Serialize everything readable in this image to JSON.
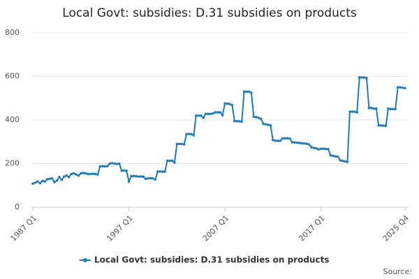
{
  "chart_data": {
    "type": "line",
    "title": "Local Govt: subsidies: D.31 subsidies on products",
    "source": "Source:",
    "categories": [
      "1987 Q1",
      null,
      null,
      null,
      null,
      null,
      null,
      null,
      null,
      null,
      null,
      null,
      null,
      null,
      null,
      null,
      null,
      null,
      null,
      null,
      null,
      null,
      null,
      null,
      null,
      null,
      null,
      null,
      null,
      null,
      null,
      null,
      null,
      null,
      null,
      null,
      null,
      null,
      null,
      null,
      "1997 Q1",
      null,
      null,
      null,
      null,
      null,
      null,
      null,
      null,
      null,
      null,
      null,
      null,
      null,
      null,
      null,
      null,
      null,
      null,
      null,
      null,
      null,
      null,
      null,
      null,
      null,
      null,
      null,
      null,
      null,
      null,
      null,
      null,
      null,
      null,
      null,
      null,
      null,
      null,
      null,
      "2007 Q1",
      null,
      null,
      null,
      null,
      null,
      null,
      null,
      null,
      null,
      null,
      null,
      null,
      null,
      null,
      null,
      null,
      null,
      null,
      null,
      null,
      null,
      null,
      null,
      null,
      null,
      null,
      null,
      null,
      null,
      null,
      null,
      null,
      null,
      null,
      null,
      null,
      null,
      null,
      null,
      "2017 Q1",
      null,
      null,
      null,
      null,
      null,
      null,
      null,
      null,
      null,
      null,
      null,
      null,
      null,
      null,
      null,
      null,
      null,
      null,
      null,
      null,
      null,
      null,
      null,
      null,
      null,
      null,
      null,
      null,
      null,
      null,
      null,
      null,
      null,
      null,
      "2025 Q4"
    ],
    "series": [
      {
        "name": "Local Govt: subsidies: D.31 subsidies on products",
        "color": "#1f7ab5",
        "values": [
          108,
          112,
          118,
          110,
          120,
          118,
          128,
          130,
          132,
          115,
          122,
          138,
          125,
          140,
          145,
          138,
          152,
          155,
          150,
          145,
          155,
          157,
          155,
          152,
          152,
          153,
          152,
          150,
          187,
          188,
          187,
          188,
          200,
          202,
          200,
          198,
          200,
          168,
          168,
          167,
          118,
          142,
          143,
          142,
          140,
          141,
          140,
          130,
          132,
          133,
          132,
          127,
          163,
          164,
          163,
          163,
          213,
          213,
          213,
          205,
          290,
          290,
          290,
          288,
          335,
          336,
          335,
          330,
          420,
          420,
          420,
          410,
          428,
          428,
          428,
          430,
          435,
          435,
          435,
          422,
          475,
          475,
          473,
          468,
          395,
          394,
          394,
          393,
          530,
          530,
          530,
          525,
          415,
          413,
          410,
          405,
          383,
          380,
          378,
          375,
          308,
          305,
          304,
          305,
          315,
          316,
          316,
          315,
          298,
          297,
          296,
          295,
          293,
          292,
          291,
          288,
          275,
          272,
          270,
          265,
          268,
          268,
          267,
          266,
          238,
          235,
          233,
          232,
          215,
          212,
          210,
          208,
          438,
          438,
          438,
          435,
          595,
          595,
          595,
          592,
          455,
          455,
          452,
          452,
          375,
          375,
          374,
          373,
          452,
          450,
          450,
          450,
          550,
          550,
          548,
          546
        ]
      }
    ],
    "ylim": [
      0,
      800
    ],
    "yticks": [
      0,
      200,
      400,
      600,
      800
    ],
    "grid": true,
    "legend": "bottom"
  }
}
